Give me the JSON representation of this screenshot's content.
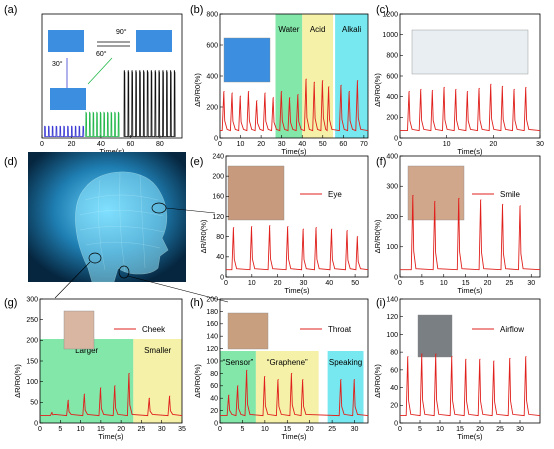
{
  "chart_data": [
    {
      "id": "a",
      "label": "(a)",
      "type": "line",
      "xlabel": "Time(s)",
      "ylabel": "",
      "xlim": [
        0,
        95
      ],
      "ylim": [
        0,
        1800
      ],
      "xticks": [
        0,
        20,
        40,
        60,
        80
      ],
      "yticks": [],
      "annotations": [
        "90°",
        "60°",
        "30°"
      ],
      "groups": [
        {
          "name": "30°",
          "color": "#3b3bd4",
          "t0": 2,
          "t1": 28,
          "n": 11,
          "peak": 170,
          "base": 20
        },
        {
          "name": "60°",
          "color": "#22b84a",
          "t0": 30,
          "t1": 52,
          "n": 10,
          "peak": 370,
          "base": 20
        },
        {
          "name": "90°",
          "color": "#111111",
          "t0": 56,
          "t1": 90,
          "n": 14,
          "peak": 980,
          "base": 20
        }
      ]
    },
    {
      "id": "b",
      "label": "(b)",
      "type": "line",
      "xlabel": "Time(s)",
      "ylabel": "ΔR/R0(%)",
      "xlim": [
        0,
        72
      ],
      "ylim": [
        0,
        800
      ],
      "xticks": [
        0,
        10,
        20,
        30,
        40,
        50,
        60,
        70
      ],
      "yticks": [
        0,
        200,
        400,
        600,
        800
      ],
      "regions": [
        {
          "label": "Water",
          "from": 27,
          "to": 40,
          "color": "#6fe39b"
        },
        {
          "label": "Acid",
          "from": 40,
          "to": 55,
          "color": "#f3ef9a"
        },
        {
          "label": "Alkali",
          "from": 56,
          "to": 72,
          "color": "#5fe4ec"
        }
      ],
      "peaks": [
        [
          2,
          300
        ],
        [
          6,
          290
        ],
        [
          10,
          270
        ],
        [
          14,
          300
        ],
        [
          18,
          240
        ],
        [
          22,
          290
        ],
        [
          26,
          260
        ],
        [
          30,
          300
        ],
        [
          34,
          260
        ],
        [
          38,
          280
        ],
        [
          42,
          380
        ],
        [
          46,
          360
        ],
        [
          50,
          370
        ],
        [
          53,
          330
        ],
        [
          59,
          340
        ],
        [
          63,
          300
        ],
        [
          67,
          370
        ]
      ],
      "color": "#e0201c"
    },
    {
      "id": "c",
      "label": "(c)",
      "type": "line",
      "xlabel": "Time(s)",
      "ylabel": "ΔR/R0(%)",
      "xlim": [
        0,
        30
      ],
      "ylim": [
        0,
        1200
      ],
      "xticks": [
        0,
        10,
        20,
        30
      ],
      "yticks": [
        0,
        200,
        400,
        600,
        800,
        1000,
        1200
      ],
      "peaks": [
        [
          2,
          450
        ],
        [
          4.5,
          470
        ],
        [
          7,
          460
        ],
        [
          9.5,
          490
        ],
        [
          12,
          470
        ],
        [
          14.5,
          450
        ],
        [
          17,
          480
        ],
        [
          19.5,
          520
        ],
        [
          22,
          500
        ],
        [
          24.5,
          470
        ],
        [
          27,
          490
        ]
      ],
      "color": "#e0201c"
    },
    {
      "id": "e",
      "label": "(e)",
      "type": "line",
      "xlabel": "Time(s)",
      "ylabel": "ΔR/R0(%)",
      "xlim": [
        0,
        55
      ],
      "ylim": [
        0,
        240
      ],
      "xticks": [
        0,
        10,
        20,
        30,
        40,
        50
      ],
      "yticks": [
        0,
        40,
        80,
        120,
        160,
        200,
        240
      ],
      "legend": "Eye",
      "peaks": [
        [
          3,
          98
        ],
        [
          10,
          100
        ],
        [
          17,
          102
        ],
        [
          24,
          100
        ],
        [
          30,
          95
        ],
        [
          35,
          98
        ],
        [
          41,
          95
        ],
        [
          47,
          92
        ],
        [
          51,
          80
        ]
      ],
      "color": "#e0201c"
    },
    {
      "id": "f",
      "label": "(f)",
      "type": "line",
      "xlabel": "Time(s)",
      "ylabel": "ΔR/R0(%)",
      "xlim": [
        0,
        32
      ],
      "ylim": [
        0,
        400
      ],
      "xticks": [
        0,
        5,
        10,
        15,
        20,
        25,
        30
      ],
      "yticks": [
        0,
        100,
        200,
        300,
        400
      ],
      "legend": "Smile",
      "peaks": [
        [
          3,
          270
        ],
        [
          8,
          250
        ],
        [
          13.5,
          260
        ],
        [
          18.5,
          255
        ],
        [
          23.5,
          240
        ],
        [
          27.5,
          235
        ]
      ],
      "color": "#e0201c"
    },
    {
      "id": "g",
      "label": "(g)",
      "type": "line",
      "xlabel": "Time(s)",
      "ylabel": "ΔR/R0(%)",
      "xlim": [
        0,
        35
      ],
      "ylim": [
        0,
        300
      ],
      "xticks": [
        0,
        5,
        10,
        15,
        20,
        25,
        30,
        35
      ],
      "yticks": [
        0,
        50,
        100,
        150,
        200,
        250,
        300
      ],
      "legend": "Cheek",
      "regions": [
        {
          "label": "Larger",
          "from": 0,
          "to": 23,
          "color": "#6fe39b"
        },
        {
          "label": "Smaller",
          "from": 23,
          "to": 35,
          "color": "#f3ef9a"
        }
      ],
      "peaks": [
        [
          3,
          25
        ],
        [
          7,
          55
        ],
        [
          11,
          70
        ],
        [
          15,
          85
        ],
        [
          18.5,
          90
        ],
        [
          22,
          120
        ],
        [
          27,
          60
        ],
        [
          32,
          65
        ]
      ],
      "color": "#e0201c"
    },
    {
      "id": "h",
      "label": "(h)",
      "type": "line",
      "xlabel": "Time(s)",
      "ylabel": "ΔR/R0(%)",
      "xlim": [
        0,
        33
      ],
      "ylim": [
        0,
        200
      ],
      "xticks": [
        0,
        5,
        10,
        15,
        20,
        25,
        30
      ],
      "yticks": [
        0,
        20,
        40,
        60,
        80,
        100,
        120,
        140,
        160,
        180,
        200
      ],
      "legend": "Throat",
      "regions": [
        {
          "label": "“Sensor”",
          "from": 0,
          "to": 8,
          "color": "#6fe39b"
        },
        {
          "label": "“Graphene”",
          "from": 8,
          "to": 22,
          "color": "#f3ef9a"
        },
        {
          "label": "Speaking",
          "from": 24,
          "to": 32,
          "color": "#5fe4ec"
        }
      ],
      "peaks": [
        [
          2,
          45
        ],
        [
          4,
          60
        ],
        [
          6,
          85
        ],
        [
          10,
          75
        ],
        [
          13,
          70
        ],
        [
          16,
          80
        ],
        [
          18.5,
          70
        ],
        [
          27,
          70
        ],
        [
          30,
          70
        ]
      ],
      "color": "#e0201c"
    },
    {
      "id": "i",
      "label": "(i)",
      "type": "line",
      "xlabel": "Time(s)",
      "ylabel": "ΔR/R0(%)",
      "xlim": [
        0,
        35
      ],
      "ylim": [
        0,
        140
      ],
      "xticks": [
        0,
        5,
        10,
        15,
        20,
        25,
        30
      ],
      "yticks": [
        0,
        20,
        40,
        60,
        80,
        100,
        120,
        140
      ],
      "legend": "Airflow",
      "peaks": [
        [
          2,
          75
        ],
        [
          5.5,
          78
        ],
        [
          9,
          78
        ],
        [
          13,
          75
        ],
        [
          16.5,
          72
        ],
        [
          20,
          72
        ],
        [
          23.5,
          70
        ],
        [
          27.5,
          73
        ],
        [
          31.5,
          75
        ]
      ],
      "color": "#e0201c"
    }
  ],
  "panel_d": {
    "label": "(d)"
  }
}
